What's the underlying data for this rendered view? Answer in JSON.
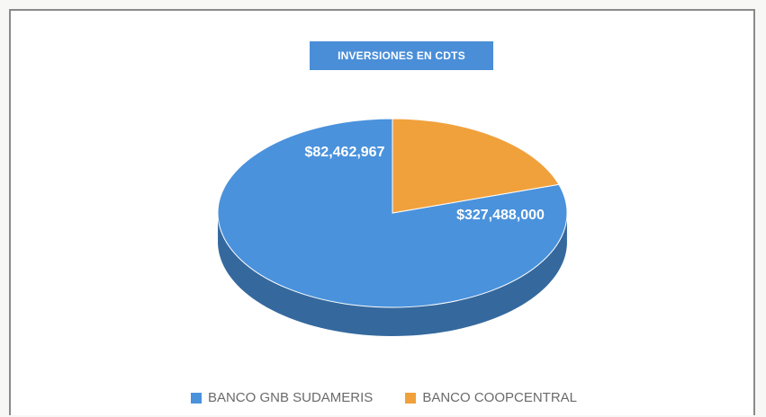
{
  "chart_data": {
    "type": "pie",
    "title": "INVERSIONES EN CDTS",
    "categories": [
      "BANCO GNB SUDAMERIS",
      "BANCO COOPCENTRAL"
    ],
    "values": [
      327488000,
      82462967
    ],
    "data_labels": [
      "$327,488,000",
      "$82,462,967"
    ],
    "colors": [
      "#4a92dc",
      "#f0a13c"
    ],
    "legend_position": "bottom",
    "style": "3d"
  }
}
